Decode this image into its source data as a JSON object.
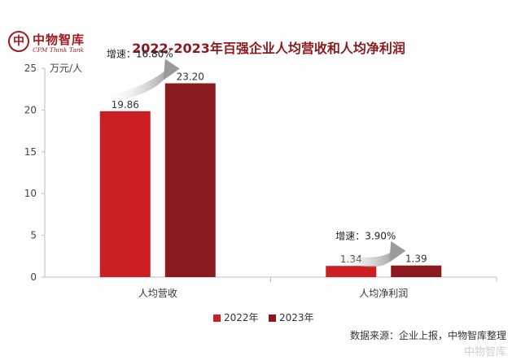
{
  "header": {
    "logo_cn": "中物智库",
    "logo_en": "CPM Think Tank",
    "title": "2022-2023年百强企业人均营收和人均净利润"
  },
  "chart_data": {
    "type": "bar",
    "ylabel": "万元/人",
    "ylim": [
      0,
      25
    ],
    "yticks": [
      "0",
      "5",
      "10",
      "15",
      "20",
      "25"
    ],
    "categories": [
      "人均营收",
      "人均净利润"
    ],
    "series": [
      {
        "name": "2022年",
        "color": "#cc1f24",
        "values": [
          19.86,
          1.34
        ],
        "labels": [
          "19.86",
          "1.34"
        ]
      },
      {
        "name": "2023年",
        "color": "#8b1a1e",
        "values": [
          23.2,
          1.39
        ],
        "labels": [
          "23.20",
          "1.39"
        ]
      }
    ],
    "annotations": [
      "增速：16.80%",
      "增速：3.90%"
    ],
    "legend_position": "bottom",
    "grid": false
  },
  "footer": {
    "source": "数据来源：企业上报，中物智库整理",
    "watermark": "中物智库"
  }
}
